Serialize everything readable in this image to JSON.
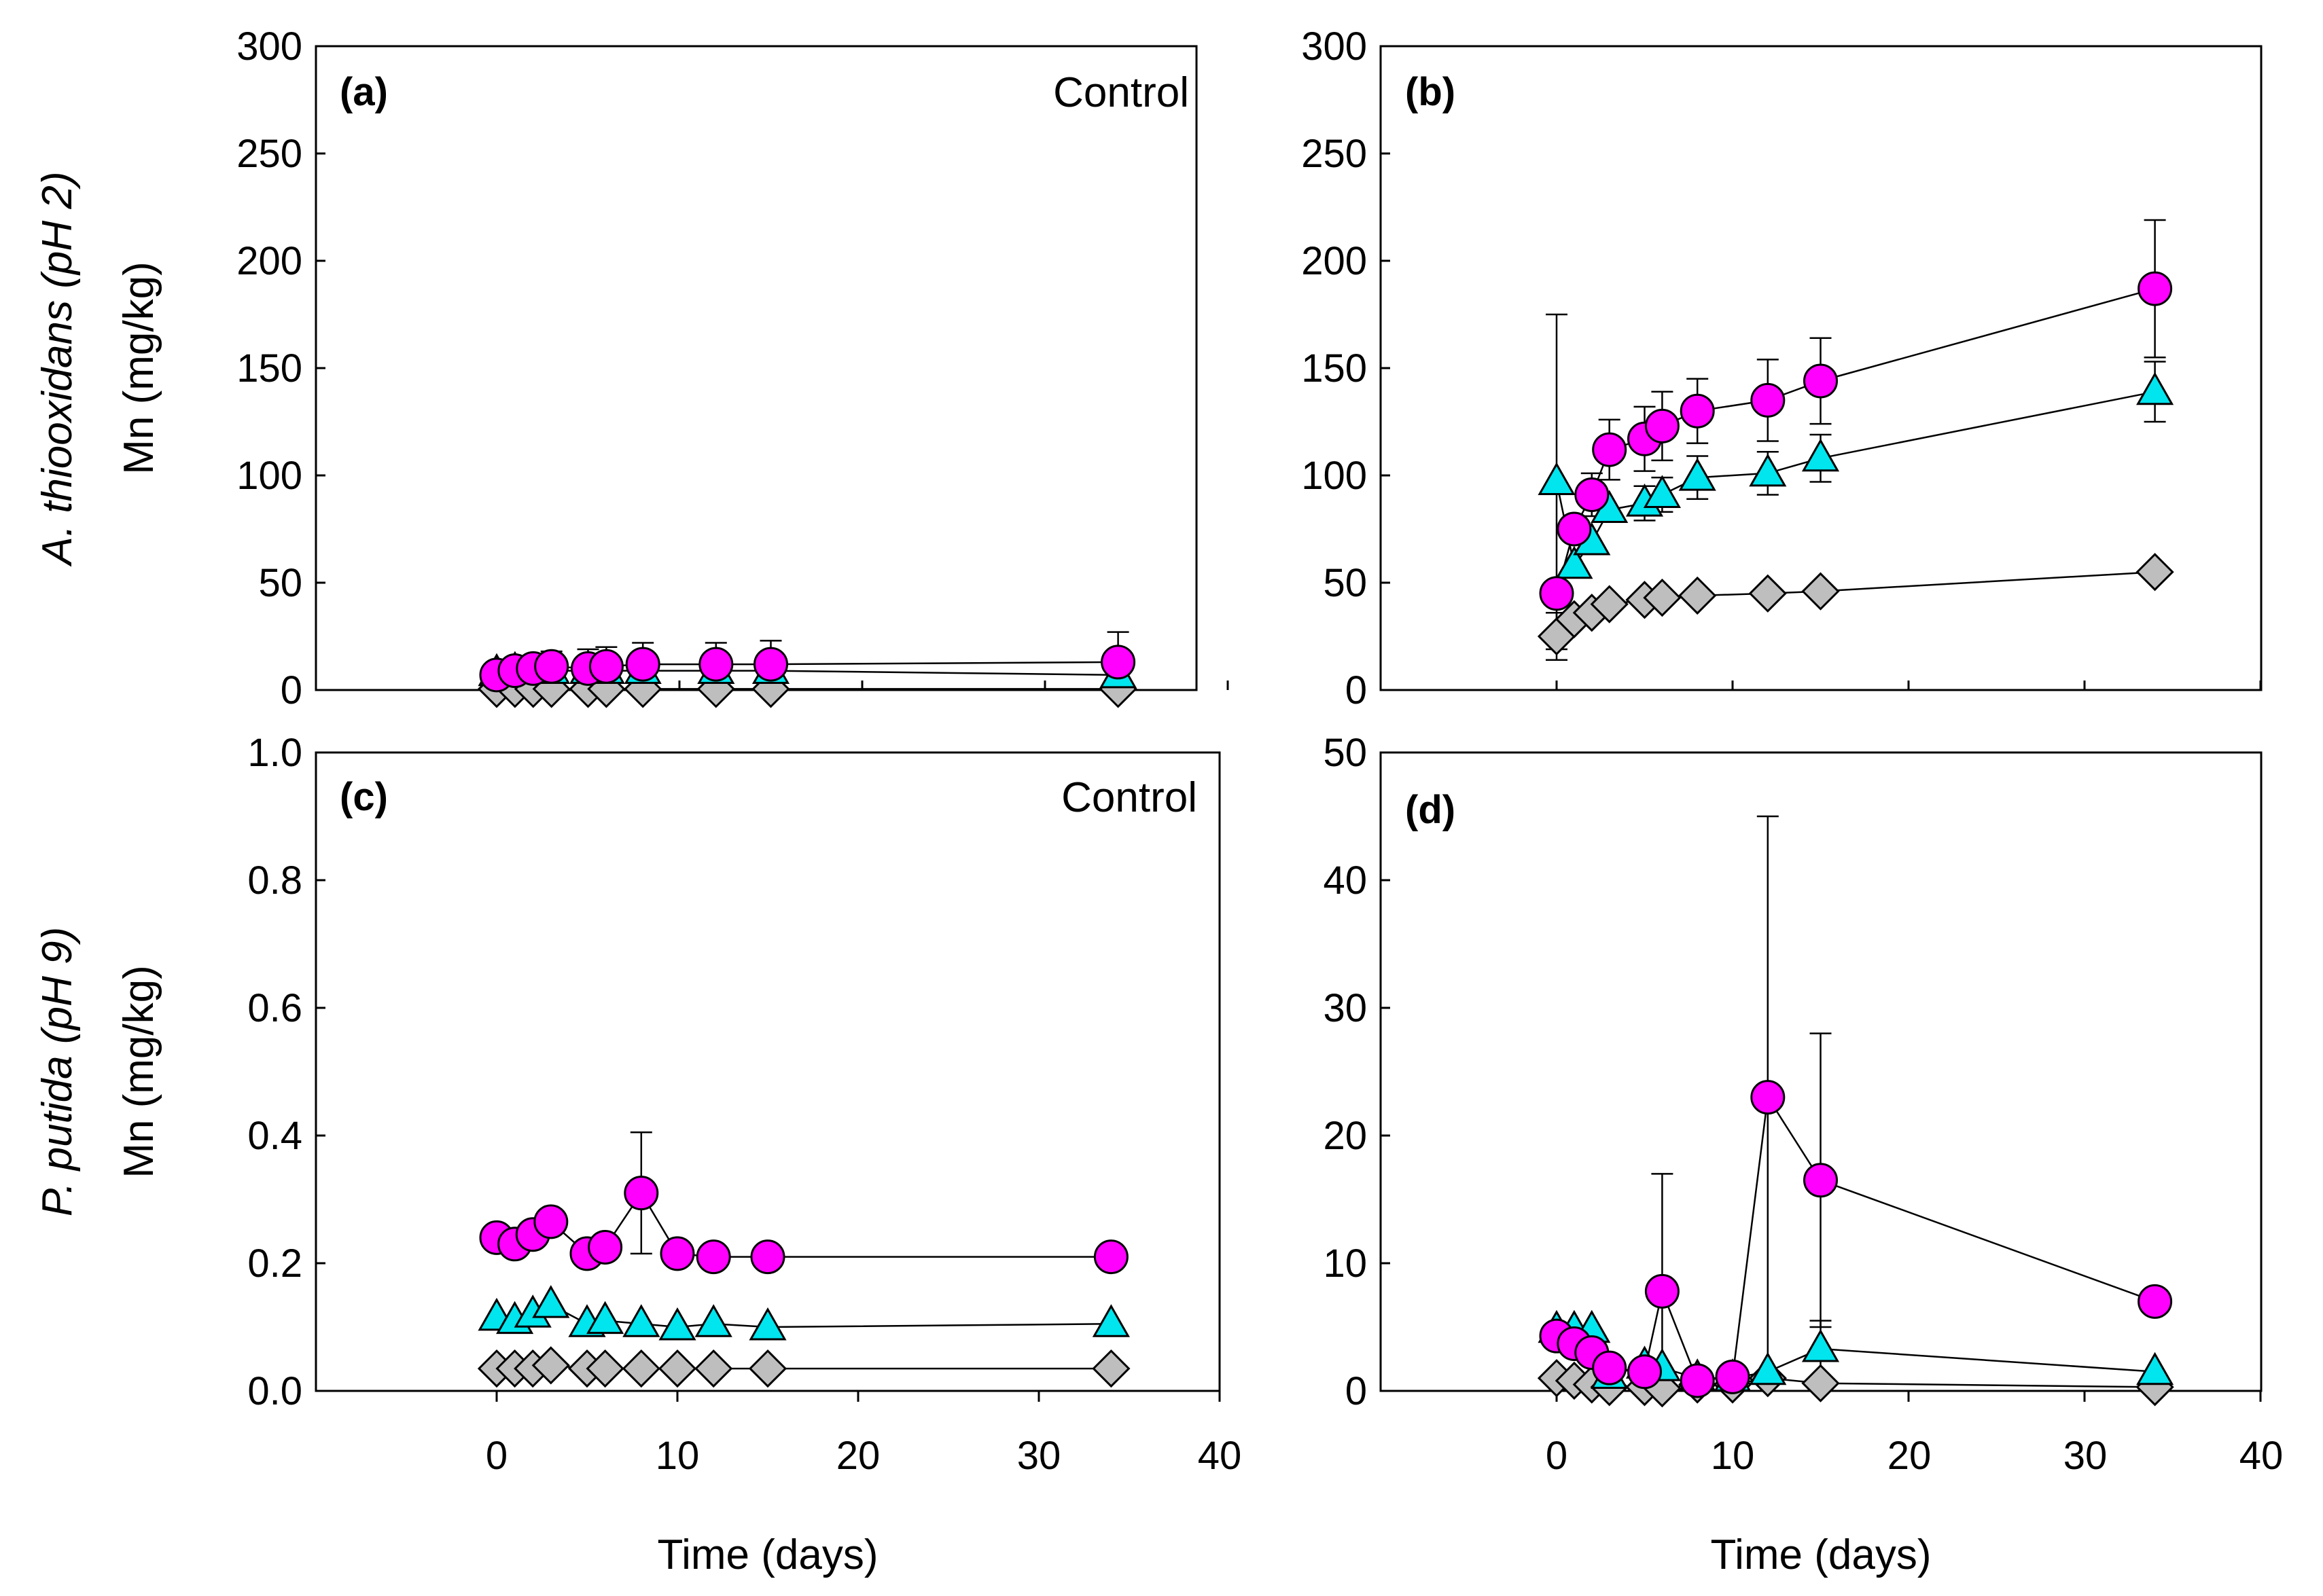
{
  "colors": {
    "circle": "#ff00ff",
    "triangle": "#00e5ee",
    "diamond": "#bebebe"
  },
  "chart_data": [
    {
      "id": "a",
      "type": "line",
      "panel_label": "(a)",
      "annotation": "Control",
      "ylim": [
        0,
        300
      ],
      "yticks": [
        "0",
        "50",
        "100",
        "150",
        "200",
        "250",
        "300"
      ],
      "xlim": [
        -10,
        40
      ],
      "xticks": [
        "0",
        "10",
        "20",
        "30",
        "40"
      ],
      "ylabel": "Mn (mg/kg)",
      "ylabel_organism": "A. thiooxidans",
      "ylabel_ph": "(pH 2)",
      "xlabel": "Time (days)",
      "x": [
        0,
        1,
        2,
        3,
        5,
        6,
        8,
        12,
        15,
        34
      ],
      "series": [
        {
          "name": "circle",
          "marker": "circle",
          "values": [
            7,
            9,
            10,
            11,
            10,
            11,
            12,
            12,
            12,
            13
          ],
          "err": [
            4,
            4,
            5,
            7,
            9,
            9,
            10,
            10,
            11,
            14
          ]
        },
        {
          "name": "triangle",
          "marker": "triangle",
          "values": [
            8,
            9,
            9,
            9,
            9,
            9,
            9,
            9,
            9,
            7
          ],
          "err": []
        },
        {
          "name": "diamond",
          "marker": "diamond",
          "values": [
            0.5,
            0.5,
            0.5,
            0.5,
            0.5,
            0.5,
            0.5,
            0.5,
            0.5,
            0.5
          ],
          "err": []
        }
      ]
    },
    {
      "id": "b",
      "type": "line",
      "panel_label": "(b)",
      "annotation": "",
      "ylim": [
        0,
        300
      ],
      "yticks": [
        "0",
        "50",
        "100",
        "150",
        "200",
        "250",
        "300"
      ],
      "xlim": [
        -10,
        40
      ],
      "xticks": [
        "0",
        "10",
        "20",
        "30",
        "40"
      ],
      "ylabel": "",
      "ylabel_organism": "",
      "ylabel_ph": "",
      "xlabel": "Time (days)",
      "x": [
        0,
        1,
        2,
        3,
        5,
        6,
        8,
        12,
        15,
        34
      ],
      "series": [
        {
          "name": "circle",
          "marker": "circle",
          "values": [
            45,
            75,
            91,
            112,
            117,
            123,
            130,
            135,
            144,
            187
          ],
          "err": [
            0,
            0,
            10,
            14,
            15,
            16,
            15,
            19,
            20,
            32
          ]
        },
        {
          "name": "triangle",
          "marker": "triangle",
          "values": [
            97,
            58,
            69,
            84,
            87,
            91,
            99,
            101,
            108,
            139
          ],
          "err": [
            78,
            0,
            0,
            0,
            8,
            8,
            10,
            10,
            11,
            14
          ]
        },
        {
          "name": "diamond",
          "marker": "diamond",
          "values": [
            25,
            33,
            36,
            40,
            42,
            43,
            44,
            45,
            46,
            55
          ],
          "err": [
            11,
            0,
            0,
            0,
            0,
            0,
            0,
            0,
            0,
            0
          ]
        }
      ]
    },
    {
      "id": "c",
      "type": "line",
      "panel_label": "(c)",
      "annotation": "Control",
      "ylim": [
        0,
        1.0
      ],
      "yticks": [
        "0.0",
        "0.2",
        "0.4",
        "0.6",
        "0.8",
        "1.0"
      ],
      "xlim": [
        -10,
        40
      ],
      "xticks": [
        "0",
        "10",
        "20",
        "30",
        "40"
      ],
      "ylabel": "Mn (mg/kg)",
      "ylabel_organism": "P. putida",
      "ylabel_ph": "(pH 9)",
      "xlabel": "Time (days)",
      "x": [
        0,
        1,
        2,
        3,
        5,
        6,
        8,
        10,
        12,
        15,
        34
      ],
      "series": [
        {
          "name": "circle",
          "marker": "circle",
          "values": [
            0.24,
            0.23,
            0.245,
            0.265,
            0.215,
            0.225,
            0.31,
            0.215,
            0.21,
            0.21,
            0.21
          ],
          "err": [
            0,
            0,
            0,
            0,
            0,
            0,
            0.095,
            0,
            0,
            0,
            0
          ]
        },
        {
          "name": "triangle",
          "marker": "triangle",
          "values": [
            0.115,
            0.11,
            0.12,
            0.135,
            0.105,
            0.11,
            0.105,
            0.1,
            0.105,
            0.1,
            0.105
          ],
          "err": []
        },
        {
          "name": "diamond",
          "marker": "diamond",
          "values": [
            0.035,
            0.035,
            0.035,
            0.04,
            0.035,
            0.035,
            0.035,
            0.035,
            0.035,
            0.035,
            0.035
          ],
          "err": []
        }
      ]
    },
    {
      "id": "d",
      "type": "line",
      "panel_label": "(d)",
      "annotation": "",
      "ylim": [
        0,
        50
      ],
      "yticks": [
        "0",
        "10",
        "20",
        "30",
        "40",
        "50"
      ],
      "xlim": [
        -10,
        40
      ],
      "xticks": [
        "0",
        "10",
        "20",
        "30",
        "40"
      ],
      "ylabel": "",
      "ylabel_organism": "",
      "ylabel_ph": "",
      "xlabel": "Time (days)",
      "x": [
        0,
        1,
        2,
        3,
        5,
        6,
        8,
        10,
        12,
        15,
        34
      ],
      "series": [
        {
          "name": "circle",
          "marker": "circle",
          "values": [
            4.3,
            3.7,
            3.0,
            1.8,
            1.5,
            7.8,
            0.8,
            1.1,
            23,
            16.5,
            7.0
          ],
          "err": [
            0,
            0,
            0,
            0,
            0,
            9.2,
            0,
            0,
            22,
            11.5,
            0
          ]
        },
        {
          "name": "triangle",
          "marker": "triangle",
          "values": [
            4.8,
            4.8,
            4.8,
            1.2,
            2.0,
            1.8,
            1.0,
            1.0,
            1.5,
            3.3,
            1.5
          ],
          "err": [
            0,
            0,
            0,
            0,
            0,
            0,
            0,
            0,
            0,
            2.2,
            0
          ]
        },
        {
          "name": "diamond",
          "marker": "diamond",
          "values": [
            1.0,
            0.8,
            0.5,
            0.3,
            0.3,
            0.2,
            0.5,
            0.5,
            1.0,
            0.6,
            0.3
          ],
          "err": []
        }
      ]
    }
  ]
}
